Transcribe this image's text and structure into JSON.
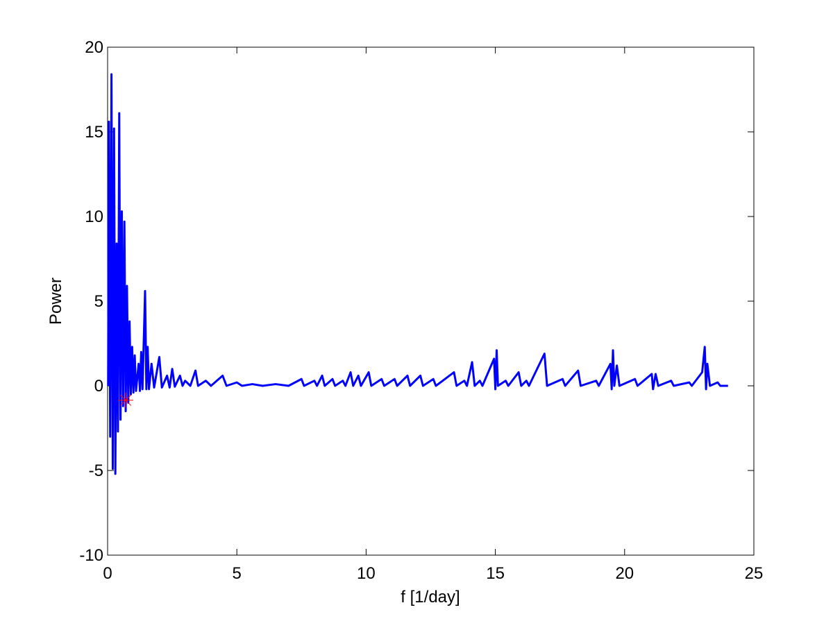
{
  "chart_data": {
    "type": "line",
    "xlabel": "f [1/day]",
    "ylabel": "Power",
    "xlim": [
      0,
      25
    ],
    "ylim": [
      -10,
      20
    ],
    "xticks": [
      0,
      5,
      10,
      15,
      20,
      25
    ],
    "yticks": [
      -10,
      -5,
      0,
      5,
      10,
      15,
      20
    ],
    "grid": false,
    "series": [
      {
        "color": "#0000ff",
        "x": [
          0.02,
          0.05,
          0.1,
          0.15,
          0.2,
          0.25,
          0.3,
          0.35,
          0.4,
          0.45,
          0.5,
          0.55,
          0.6,
          0.65,
          0.7,
          0.75,
          0.8,
          0.85,
          0.9,
          0.95,
          1.0,
          1.05,
          1.1,
          1.2,
          1.25,
          1.3,
          1.35,
          1.45,
          1.5,
          1.55,
          1.6,
          1.7,
          1.8,
          2.0,
          2.1,
          2.3,
          2.4,
          2.5,
          2.6,
          2.8,
          2.9,
          3.0,
          3.2,
          3.4,
          3.5,
          3.8,
          4.0,
          4.45,
          4.6,
          5.0,
          5.2,
          5.6,
          6.0,
          6.5,
          7.0,
          7.5,
          7.6,
          8.0,
          8.1,
          8.3,
          8.4,
          8.7,
          8.8,
          9.1,
          9.2,
          9.4,
          9.5,
          9.7,
          9.8,
          10.1,
          10.2,
          10.6,
          10.7,
          11.1,
          11.2,
          11.6,
          11.7,
          12.1,
          12.2,
          12.6,
          12.7,
          13.4,
          13.5,
          13.8,
          13.9,
          14.1,
          14.2,
          14.4,
          14.5,
          14.95,
          15.0,
          15.05,
          15.1,
          15.4,
          15.5,
          15.9,
          16.0,
          16.2,
          16.3,
          16.9,
          17.0,
          17.6,
          17.7,
          18.2,
          18.3,
          18.9,
          19.0,
          19.45,
          19.5,
          19.55,
          19.6,
          19.7,
          19.8,
          20.4,
          20.5,
          21.05,
          21.1,
          21.2,
          21.3,
          21.8,
          21.9,
          22.5,
          22.6,
          23.0,
          23.1,
          23.15,
          23.2,
          23.3,
          23.6,
          23.7,
          24.0
        ],
        "values": [
          0,
          15.6,
          -3,
          18.4,
          -4.9,
          15.2,
          -5.2,
          8.4,
          -2.7,
          16.1,
          -2,
          10.3,
          -1.2,
          9.7,
          -1.5,
          5.9,
          -1,
          3.8,
          -0.5,
          2.3,
          -0.4,
          1.8,
          -0.3,
          1.3,
          -0.3,
          2.0,
          -0.2,
          5.6,
          -0.2,
          2.3,
          -0.2,
          1.3,
          -0.1,
          1.7,
          -0.1,
          0.6,
          -0.1,
          1.0,
          -0.05,
          0.6,
          0,
          0.3,
          0,
          0.9,
          0,
          0.3,
          0,
          0.6,
          0,
          0.2,
          0,
          0.1,
          0,
          0.1,
          0,
          0.4,
          0,
          0.3,
          0,
          0.6,
          0,
          0.4,
          0,
          0.3,
          0,
          0.8,
          0,
          0.6,
          0,
          0.8,
          0,
          0.4,
          0,
          0.4,
          0,
          0.6,
          0,
          0.6,
          0,
          0.4,
          0,
          0.8,
          0,
          0.3,
          0,
          1.4,
          0,
          0.3,
          0,
          1.6,
          -0.2,
          2.1,
          0,
          0.3,
          0,
          0.8,
          0,
          0.3,
          0,
          1.9,
          0,
          0.4,
          0,
          0.9,
          0,
          0.3,
          0,
          1.3,
          -0.2,
          2.1,
          0,
          1.2,
          0,
          0.4,
          0,
          0.7,
          -0.2,
          0.7,
          0,
          0.3,
          0,
          0.2,
          0,
          0.8,
          2.3,
          -0.2,
          1.3,
          0,
          0.2,
          0,
          0
        ]
      }
    ],
    "marker": {
      "x": 0.7,
      "y": -0.85,
      "color": "#ff0000"
    }
  }
}
